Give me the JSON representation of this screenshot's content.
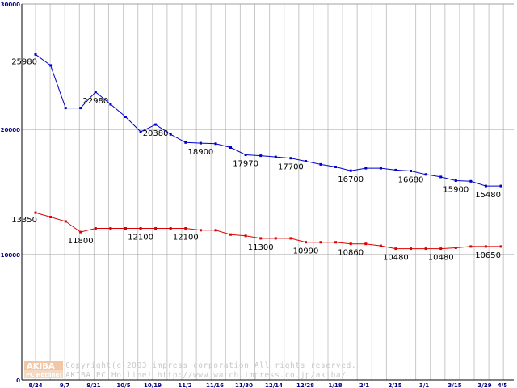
{
  "chart_data": {
    "type": "line",
    "title": "",
    "xlabel": "",
    "ylabel": "",
    "ylim": [
      0,
      30000
    ],
    "y_ticks": [
      0,
      10000,
      20000,
      30000
    ],
    "x_tick_labels": [
      "8/24",
      "9/7",
      "9/21",
      "10/5",
      "10/19",
      "11/2",
      "11/16",
      "11/30",
      "12/14",
      "12/28",
      "1/18",
      "2/1",
      "2/15",
      "3/1",
      "3/15",
      "3/29",
      "4/5"
    ],
    "grid": true,
    "legend": "none",
    "series": [
      {
        "color": "#0000cc",
        "values": [
          25980,
          25100,
          21700,
          21700,
          22980,
          22000,
          21000,
          19800,
          20380,
          19600,
          18950,
          18900,
          18850,
          18550,
          17970,
          17900,
          17800,
          17700,
          17450,
          17200,
          17000,
          16700,
          16900,
          16900,
          16750,
          16680,
          16400,
          16200,
          15900,
          15850,
          15480,
          15480
        ],
        "labels": [
          {
            "index": 0,
            "text": "25980"
          },
          {
            "index": 4,
            "text": "22980"
          },
          {
            "index": 8,
            "text": "20380"
          },
          {
            "index": 11,
            "text": "18900"
          },
          {
            "index": 14,
            "text": "17970"
          },
          {
            "index": 17,
            "text": "17700"
          },
          {
            "index": 21,
            "text": "16700"
          },
          {
            "index": 25,
            "text": "16680"
          },
          {
            "index": 28,
            "text": "15900"
          },
          {
            "index": 31,
            "text": "15480"
          }
        ]
      },
      {
        "color": "#dd0000",
        "values": [
          13350,
          13000,
          12650,
          11800,
          12100,
          12100,
          12100,
          12100,
          12100,
          12100,
          12100,
          11950,
          11950,
          11600,
          11500,
          11300,
          11300,
          11300,
          10990,
          10990,
          10990,
          10860,
          10860,
          10700,
          10480,
          10480,
          10480,
          10480,
          10550,
          10650,
          10650,
          10650
        ],
        "labels": [
          {
            "index": 0,
            "text": "13350"
          },
          {
            "index": 3,
            "text": "11800"
          },
          {
            "index": 7,
            "text": "12100"
          },
          {
            "index": 10,
            "text": "12100"
          },
          {
            "index": 15,
            "text": "11300"
          },
          {
            "index": 18,
            "text": "10990"
          },
          {
            "index": 21,
            "text": "10860"
          },
          {
            "index": 24,
            "text": "10480"
          },
          {
            "index": 27,
            "text": "10480"
          },
          {
            "index": 31,
            "text": "10650"
          }
        ]
      }
    ]
  },
  "footer": {
    "copyright_line1": "Copyright(c)2003 impress corporation All rights reserved.",
    "copyright_line2": "AKIBA PC Hotline!  http://www.watch.impress.co.jp/akiba/",
    "logo_top": "AKIBA",
    "logo_bottom": "PC Hotline!"
  }
}
